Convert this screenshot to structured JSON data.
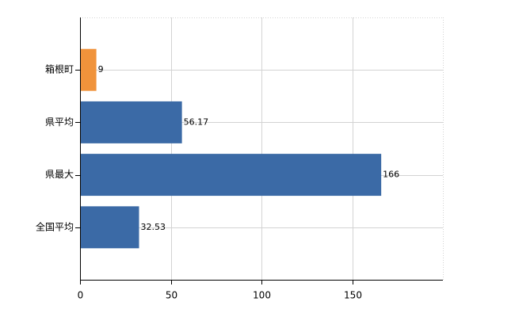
{
  "chart_data": {
    "type": "bar",
    "orientation": "horizontal",
    "categories": [
      "箱根町",
      "県平均",
      "県最大",
      "全国平均"
    ],
    "values": [
      9,
      56.17,
      166,
      32.53
    ],
    "colors": [
      "#f0933b",
      "#3b6aa6",
      "#3b6aa6",
      "#3b6aa6"
    ],
    "xlim": [
      0,
      200
    ],
    "xticks": [
      0,
      50,
      100,
      150
    ],
    "grid": true
  }
}
